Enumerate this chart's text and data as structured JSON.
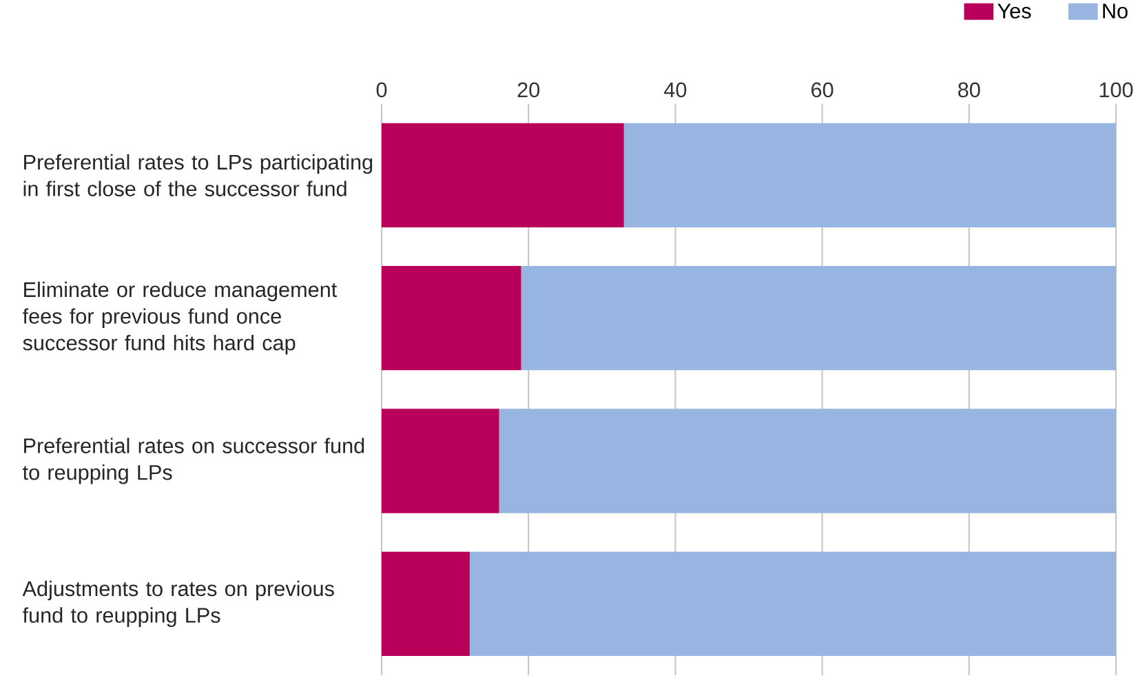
{
  "chart_data": {
    "type": "bar",
    "orientation": "horizontal",
    "stacked": true,
    "categories": [
      "Preferential rates to LPs participating in first close of the successor fund",
      "Eliminate or reduce management fees for previous fund once successor fund hits hard cap",
      "Preferential rates on successor fund to reupping LPs",
      "Adjustments to rates on previous fund to reupping LPs"
    ],
    "series": [
      {
        "name": "Yes",
        "color": "#b8005a",
        "values": [
          33,
          19,
          16,
          12
        ]
      },
      {
        "name": "No",
        "color": "#98b4e0",
        "values": [
          67,
          81,
          84,
          88
        ]
      }
    ],
    "xlim": [
      0,
      100
    ],
    "xticks": [
      0,
      20,
      40,
      60,
      80,
      100
    ],
    "grid": "x",
    "legend": "top right"
  }
}
